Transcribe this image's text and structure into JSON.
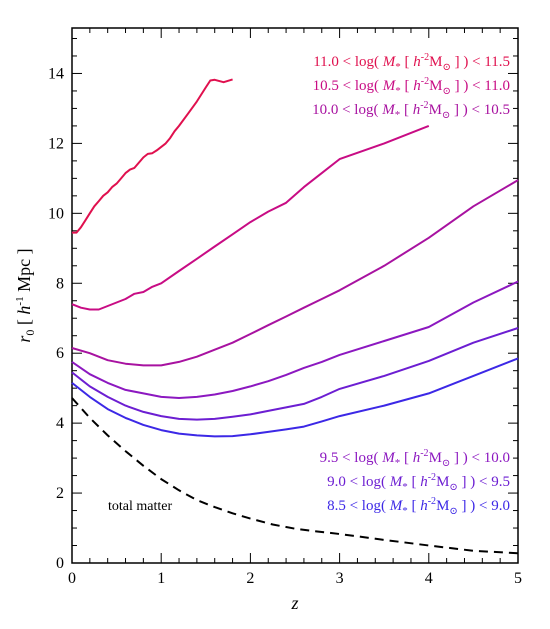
{
  "chart_data": {
    "type": "line",
    "xlabel": "z",
    "ylabel": "r0 [ h-1 Mpc ]",
    "ylabel_parts": {
      "main": "r",
      "sub": "0",
      "unit_open": " [ ",
      "unit_h": "h",
      "unit_exp": "-1",
      "unit_rest": " Mpc ]"
    },
    "xlim": [
      0,
      5
    ],
    "ylim": [
      0,
      15.3
    ],
    "xticks": [
      "0",
      "1",
      "2",
      "3",
      "4",
      "5"
    ],
    "yticks": [
      "0",
      "2",
      "4",
      "6",
      "8",
      "10",
      "12",
      "14"
    ],
    "grid": false,
    "legend_upper": [
      {
        "lo": "11.0",
        "hi": "11.5",
        "color": "#e0104e"
      },
      {
        "lo": "10.5",
        "hi": "11.0",
        "color": "#c80c84"
      },
      {
        "lo": "10.0",
        "hi": "10.5",
        "color": "#a812a0"
      }
    ],
    "legend_lower": [
      {
        "lo": "9.5",
        "hi": "10.0",
        "color": "#8c18c0"
      },
      {
        "lo": "9.0",
        "hi": "9.5",
        "color": "#6c1ed2"
      },
      {
        "lo": "8.5",
        "hi": "9.0",
        "color": "#3c28e6"
      }
    ],
    "legend_fmt": {
      "lt": " < log( ",
      "m": "M",
      "star": "*",
      "open": " [ ",
      "h": "h",
      "hexp": "-2",
      "Msun": "M",
      "sun": "⊙",
      "close": " ] ) < "
    },
    "annotation": "total matter",
    "series": [
      {
        "name": "11.0 < log(M* [h-2 Msun]) < 11.5",
        "color": "#e0104e",
        "dash": false,
        "x": [
          0,
          0.05,
          0.1,
          0.15,
          0.2,
          0.25,
          0.3,
          0.35,
          0.4,
          0.45,
          0.5,
          0.55,
          0.6,
          0.65,
          0.7,
          0.75,
          0.8,
          0.85,
          0.9,
          0.95,
          1.0,
          1.05,
          1.1,
          1.15,
          1.2,
          1.3,
          1.4,
          1.5,
          1.55,
          1.6,
          1.7,
          1.8
        ],
        "y": [
          9.45,
          9.45,
          9.6,
          9.8,
          10.0,
          10.2,
          10.35,
          10.5,
          10.6,
          10.75,
          10.85,
          11.0,
          11.15,
          11.25,
          11.3,
          11.45,
          11.6,
          11.7,
          11.72,
          11.8,
          11.9,
          12.0,
          12.15,
          12.35,
          12.5,
          12.85,
          13.2,
          13.6,
          13.8,
          13.82,
          13.75,
          13.83
        ]
      },
      {
        "name": "10.5 < log(M* [h-2 Msun]) < 11.0",
        "color": "#c80c84",
        "dash": false,
        "x": [
          0,
          0.1,
          0.2,
          0.3,
          0.4,
          0.5,
          0.6,
          0.7,
          0.8,
          0.9,
          1.0,
          1.2,
          1.4,
          1.6,
          1.8,
          2.0,
          2.2,
          2.4,
          2.6,
          2.8,
          3.0,
          3.5,
          4.0
        ],
        "y": [
          7.4,
          7.3,
          7.25,
          7.25,
          7.35,
          7.45,
          7.55,
          7.7,
          7.75,
          7.9,
          8.0,
          8.35,
          8.7,
          9.05,
          9.4,
          9.75,
          10.05,
          10.3,
          10.75,
          11.15,
          11.55,
          12.0,
          12.5
        ]
      },
      {
        "name": "10.0 < log(M* [h-2 Msun]) < 10.5",
        "color": "#a812a0",
        "dash": false,
        "x": [
          0,
          0.2,
          0.4,
          0.6,
          0.8,
          1.0,
          1.2,
          1.4,
          1.6,
          1.8,
          2.0,
          2.2,
          2.4,
          2.6,
          2.8,
          3.0,
          3.5,
          4.0,
          4.5,
          5.0
        ],
        "y": [
          6.15,
          6.0,
          5.8,
          5.7,
          5.65,
          5.65,
          5.75,
          5.9,
          6.1,
          6.3,
          6.55,
          6.8,
          7.05,
          7.3,
          7.55,
          7.8,
          8.5,
          9.3,
          10.2,
          10.95
        ]
      },
      {
        "name": "9.5 < log(M* [h-2 Msun]) < 10.0",
        "color": "#8c18c0",
        "dash": false,
        "x": [
          0,
          0.2,
          0.4,
          0.6,
          0.8,
          1.0,
          1.2,
          1.4,
          1.6,
          1.8,
          2.0,
          2.2,
          2.4,
          2.6,
          2.8,
          3.0,
          3.5,
          4.0,
          4.5,
          5.0
        ],
        "y": [
          5.75,
          5.4,
          5.15,
          4.95,
          4.85,
          4.75,
          4.72,
          4.75,
          4.82,
          4.92,
          5.05,
          5.2,
          5.38,
          5.58,
          5.75,
          5.95,
          6.35,
          6.75,
          7.45,
          8.05
        ]
      },
      {
        "name": "9.0 < log(M* [h-2 Msun]) < 9.5",
        "color": "#6c1ed2",
        "dash": false,
        "x": [
          0,
          0.2,
          0.4,
          0.6,
          0.8,
          1.0,
          1.2,
          1.4,
          1.6,
          1.8,
          2.0,
          2.2,
          2.4,
          2.6,
          2.8,
          3.0,
          3.5,
          4.0,
          4.5,
          5.0
        ],
        "y": [
          5.45,
          5.05,
          4.75,
          4.5,
          4.32,
          4.2,
          4.12,
          4.1,
          4.12,
          4.18,
          4.25,
          4.35,
          4.45,
          4.55,
          4.75,
          4.98,
          5.35,
          5.78,
          6.3,
          6.72
        ]
      },
      {
        "name": "8.5 < log(M* [h-2 Msun]) < 9.0",
        "color": "#3c28e6",
        "dash": false,
        "x": [
          0,
          0.2,
          0.4,
          0.6,
          0.8,
          1.0,
          1.2,
          1.4,
          1.6,
          1.8,
          2.0,
          2.2,
          2.4,
          2.6,
          2.8,
          3.0,
          3.5,
          4.0,
          4.5,
          5.0
        ],
        "y": [
          5.15,
          4.75,
          4.4,
          4.15,
          3.95,
          3.8,
          3.7,
          3.65,
          3.62,
          3.63,
          3.68,
          3.75,
          3.82,
          3.9,
          4.05,
          4.2,
          4.5,
          4.85,
          5.35,
          5.85
        ]
      },
      {
        "name": "total matter",
        "color": "#000000",
        "dash": true,
        "x": [
          0,
          0.2,
          0.4,
          0.6,
          0.8,
          1.0,
          1.2,
          1.4,
          1.6,
          1.8,
          2.0,
          2.25,
          2.5,
          2.75,
          3.0,
          3.5,
          4.0,
          4.5,
          5.0
        ],
        "y": [
          4.72,
          4.15,
          3.65,
          3.2,
          2.78,
          2.4,
          2.08,
          1.8,
          1.6,
          1.42,
          1.27,
          1.1,
          0.98,
          0.9,
          0.83,
          0.66,
          0.5,
          0.35,
          0.28
        ]
      }
    ]
  }
}
